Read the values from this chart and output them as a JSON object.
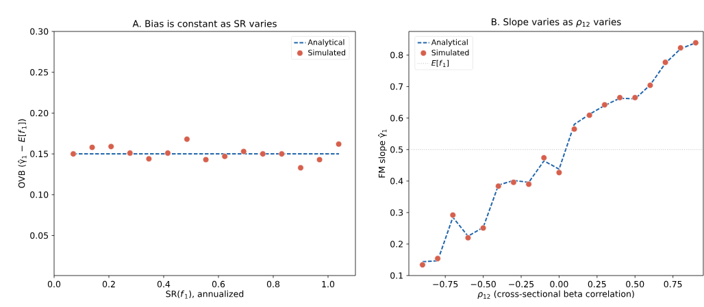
{
  "chart_data": [
    {
      "type": "line",
      "title": "A. Bias is constant as SR varies",
      "xlabel": "SR(*f*$_{1}$), annualized",
      "ylabel": "OVB (γ̂$_{1}$ − *E*[*f*$_{1}$])",
      "legend": "top right",
      "xlim": [
        0,
        1.1
      ],
      "ylim": [
        0.001,
        0.3
      ],
      "xticks": [
        {
          "value": 0,
          "label": "0.0"
        },
        0.2,
        0.4,
        0.6,
        0.8,
        {
          "value": 1,
          "label": "1.0"
        }
      ],
      "yticks": [
        0.05,
        {
          "value": 0.1,
          "label": "0.10"
        },
        0.15,
        {
          "value": 0.2,
          "label": "0.20"
        },
        0.25,
        {
          "value": 0.3,
          "label": "0.30"
        }
      ],
      "series": [
        {
          "name": "Analytical",
          "line_style": "dashed",
          "marker": "none",
          "color": "#2166ac",
          "x": [
            0.07,
            1.04
          ],
          "values": [
            0.15,
            0.15
          ]
        },
        {
          "name": "Simulated",
          "type": "scatter",
          "marker": "circle",
          "color": "#d6604d",
          "x": [
            0.07,
            0.139,
            0.208,
            0.277,
            0.346,
            0.415,
            0.485,
            0.554,
            0.623,
            0.692,
            0.762,
            0.831,
            0.9,
            0.969,
            1.039
          ],
          "values": [
            0.15,
            0.158,
            0.159,
            0.151,
            0.144,
            0.151,
            0.168,
            0.143,
            0.147,
            0.153,
            0.15,
            0.15,
            0.133,
            0.143,
            0.162
          ]
        }
      ]
    },
    {
      "type": "line",
      "title": "B. Slope varies as *ρ*$_{12}$ varies",
      "xlabel": "*ρ*$_{12}$ (cross-sectional beta correlation)",
      "ylabel": "FM slope γ̂$_{1}$",
      "legend": "top left",
      "xlim": [
        -0.99,
        0.95
      ],
      "ylim": [
        0.1,
        0.875
      ],
      "xticks": [
        {
          "value": -0.75,
          "label": "−0.75"
        },
        {
          "value": -0.5,
          "label": "−0.50"
        },
        {
          "value": -0.25,
          "label": "−0.25"
        },
        {
          "value": 0,
          "label": "0.00"
        },
        0.25,
        {
          "value": 0.5,
          "label": "0.50"
        },
        0.75
      ],
      "yticks": [
        0.1,
        0.2,
        0.3,
        0.4,
        0.5,
        0.6,
        0.7,
        0.8
      ],
      "ref_lines": [
        {
          "axis": "y",
          "value": 0.5,
          "label": "*E*[*f*$_{1}$]",
          "color": "#999999",
          "line_style": "dotted"
        }
      ],
      "series": [
        {
          "name": "Analytical",
          "line_style": "dashed",
          "marker": "none",
          "color": "#2166ac",
          "x": [
            -0.9,
            -0.8,
            -0.7,
            -0.6,
            -0.5,
            -0.4,
            -0.3,
            -0.2,
            -0.1,
            0,
            0.1,
            0.2,
            0.3,
            0.4,
            0.5,
            0.6,
            0.7,
            0.8,
            0.9
          ],
          "values": [
            0.144,
            0.147,
            0.285,
            0.225,
            0.253,
            0.387,
            0.402,
            0.396,
            0.464,
            0.438,
            0.58,
            0.612,
            0.64,
            0.663,
            0.661,
            0.705,
            0.774,
            0.82,
            0.839
          ]
        },
        {
          "name": "Simulated",
          "type": "scatter",
          "marker": "circle",
          "color": "#d6604d",
          "x": [
            -0.9,
            -0.8,
            -0.7,
            -0.6,
            -0.5,
            -0.4,
            -0.3,
            -0.2,
            -0.1,
            0,
            0.1,
            0.2,
            0.3,
            0.4,
            0.5,
            0.6,
            0.7,
            0.8,
            0.9
          ],
          "values": [
            0.134,
            0.154,
            0.292,
            0.22,
            0.251,
            0.384,
            0.396,
            0.39,
            0.474,
            0.427,
            0.565,
            0.609,
            0.642,
            0.665,
            0.665,
            0.704,
            0.777,
            0.823,
            0.839
          ]
        }
      ]
    }
  ]
}
